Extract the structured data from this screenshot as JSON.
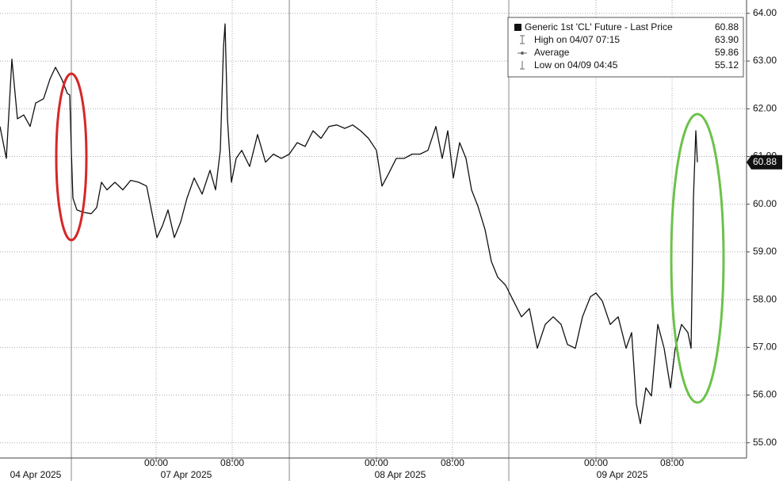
{
  "chart_data": {
    "type": "line",
    "legend": {
      "title": "Generic 1st 'CL' Future - Last Price",
      "last_price": 60.88,
      "last_price_label": "60.88",
      "items": [
        {
          "label": "High on 04/07 07:15",
          "value": 63.9,
          "value_label": "63.90"
        },
        {
          "label": "Average",
          "value": 59.86,
          "value_label": "59.86"
        },
        {
          "label": "Low on 04/09 04:45",
          "value": 55.12,
          "value_label": "55.12"
        }
      ]
    },
    "series": [
      {
        "name": "Generic 1st 'CL' Future",
        "color": "#111111",
        "x": [
          0,
          0.67,
          1.25,
          1.83,
          2.5,
          3.17,
          3.75,
          4.58,
          5.25,
          5.83,
          6.5,
          7.08,
          7.33,
          7.5,
          7.67,
          8.08,
          8.75,
          9.58,
          10.17,
          10.67,
          11.25,
          12.08,
          12.92,
          13.75,
          14.58,
          15.42,
          16,
          16.5,
          17.08,
          17.67,
          18.33,
          19,
          19.67,
          20.42,
          21.25,
          22.08,
          22.67,
          23.17,
          23.5,
          23.67,
          23.92,
          24.33,
          24.83,
          25.42,
          26.25,
          27.08,
          27.92,
          28.75,
          29.58,
          30.42,
          31.25,
          32.08,
          32.92,
          33.75,
          34.58,
          35.42,
          36.25,
          37.08,
          37.92,
          38.75,
          39.58,
          40.17,
          40.83,
          41.67,
          42.5,
          43.33,
          44.17,
          45,
          45.83,
          46.5,
          47.08,
          47.67,
          48.33,
          49,
          49.58,
          50.25,
          51,
          51.67,
          52.33,
          53.17,
          54,
          54.83,
          55.67,
          56.5,
          57.33,
          58.17,
          59,
          59.67,
          60.5,
          61.25,
          62.08,
          62.67,
          63.33,
          64.17,
          65,
          65.83,
          66.42,
          66.92,
          67.33,
          67.92,
          68.5,
          69.17,
          69.83,
          70.5,
          71,
          71.67,
          72.33,
          72.67,
          72.92,
          73.17,
          73.33
        ],
        "values": [
          61.63,
          60.96,
          63.04,
          61.79,
          61.87,
          61.63,
          62.12,
          62.21,
          62.62,
          62.87,
          62.62,
          62.32,
          62.29,
          61.13,
          60.13,
          59.88,
          59.83,
          59.8,
          59.93,
          60.46,
          60.3,
          60.46,
          60.3,
          60.5,
          60.46,
          60.38,
          59.8,
          59.3,
          59.55,
          59.88,
          59.3,
          59.63,
          60.13,
          60.55,
          60.21,
          60.71,
          60.3,
          61.13,
          63.29,
          63.78,
          61.79,
          60.46,
          60.96,
          61.13,
          60.79,
          61.46,
          60.88,
          61.05,
          60.96,
          61.05,
          61.29,
          61.21,
          61.54,
          61.38,
          61.63,
          61.66,
          61.59,
          61.66,
          61.54,
          61.38,
          61.13,
          60.38,
          60.63,
          60.96,
          60.96,
          61.05,
          61.05,
          61.13,
          61.63,
          60.96,
          61.54,
          60.55,
          61.29,
          60.96,
          60.3,
          59.96,
          59.47,
          58.8,
          58.47,
          58.3,
          57.97,
          57.64,
          57.81,
          56.98,
          57.48,
          57.64,
          57.48,
          57.06,
          56.98,
          57.64,
          58.06,
          58.14,
          57.97,
          57.48,
          57.64,
          56.98,
          57.31,
          55.81,
          55.4,
          56.15,
          55.98,
          57.48,
          56.98,
          56.15,
          56.98,
          57.48,
          57.31,
          56.98,
          60.13,
          61.54,
          60.88
        ]
      }
    ],
    "xlim": [
      0,
      78.5
    ],
    "xticks": [
      {
        "value": 16.42,
        "label": "00:00"
      },
      {
        "value": 24.42,
        "label": "08:00"
      },
      {
        "value": 39.58,
        "label": "00:00"
      },
      {
        "value": 47.58,
        "label": "08:00"
      },
      {
        "value": 62.67,
        "label": "00:00"
      },
      {
        "value": 70.67,
        "label": "08:00"
      }
    ],
    "x_date_labels": [
      {
        "value": 3.75,
        "label": "04 Apr 2025"
      },
      {
        "value": 19.58,
        "label": "07 Apr 2025"
      },
      {
        "value": 42.08,
        "label": "08 Apr 2025"
      },
      {
        "value": 65.42,
        "label": "09 Apr 2025"
      }
    ],
    "x_separators": [
      7.5,
      30.42,
      53.5
    ],
    "ylim": [
      54.68,
      64.28
    ],
    "yticks": [
      {
        "value": 55,
        "label": "55.00"
      },
      {
        "value": 56,
        "label": "56.00"
      },
      {
        "value": 57,
        "label": "57.00"
      },
      {
        "value": 58,
        "label": "58.00"
      },
      {
        "value": 59,
        "label": "59.00"
      },
      {
        "value": 60,
        "label": "60.00"
      },
      {
        "value": 61,
        "label": "61.00"
      },
      {
        "value": 62,
        "label": "62.00"
      },
      {
        "value": 63,
        "label": "63.00"
      },
      {
        "value": 64,
        "label": "64.00"
      }
    ],
    "grid": true
  }
}
